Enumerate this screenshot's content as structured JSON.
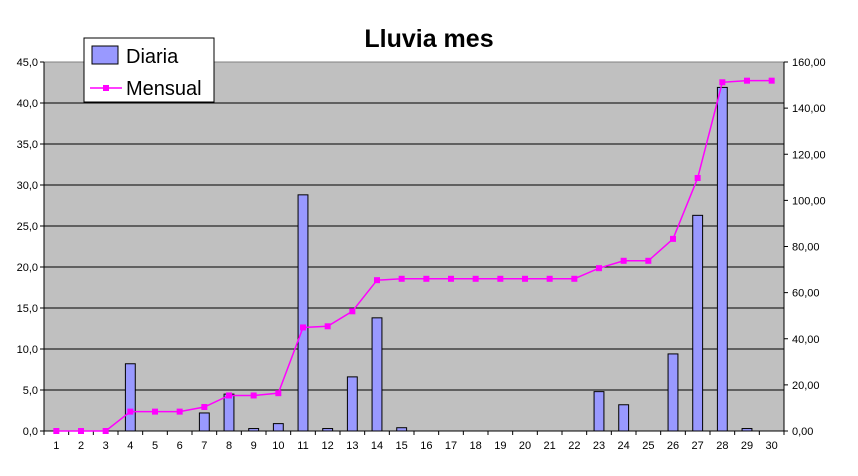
{
  "chart_data": {
    "type": "bar",
    "title": "Lluvia mes",
    "categories": [
      "1",
      "2",
      "3",
      "4",
      "5",
      "6",
      "7",
      "8",
      "9",
      "10",
      "11",
      "12",
      "13",
      "14",
      "15",
      "16",
      "17",
      "18",
      "19",
      "20",
      "21",
      "22",
      "23",
      "24",
      "25",
      "26",
      "27",
      "28",
      "29",
      "30"
    ],
    "series": [
      {
        "name": "Diaria",
        "type": "bar",
        "axis": "left",
        "values": [
          0.0,
          0.0,
          0.0,
          8.2,
          0.0,
          0.0,
          2.2,
          4.5,
          0.3,
          0.9,
          28.8,
          0.3,
          6.6,
          13.8,
          0.4,
          0.0,
          0.0,
          0.0,
          0.0,
          0.0,
          0.0,
          0.0,
          4.8,
          3.2,
          0.0,
          9.4,
          26.3,
          41.9,
          0.3,
          0.0
        ],
        "color": "#9999ff"
      },
      {
        "name": "Mensual",
        "type": "line",
        "axis": "right",
        "values": [
          0.0,
          0.0,
          0.0,
          8.4,
          8.4,
          8.4,
          10.4,
          15.4,
          15.4,
          16.4,
          44.9,
          45.4,
          51.9,
          65.4,
          66.0,
          66.0,
          66.0,
          66.0,
          66.0,
          66.0,
          66.0,
          66.0,
          70.6,
          73.8,
          73.8,
          83.3,
          109.7,
          151.2,
          151.9,
          151.9
        ],
        "color": "#ff00ff"
      }
    ],
    "left_axis": {
      "ylim": [
        0,
        45
      ],
      "ticks": [
        "0,0",
        "5,0",
        "10,0",
        "15,0",
        "20,0",
        "25,0",
        "30,0",
        "35,0",
        "40,0",
        "45,0"
      ]
    },
    "right_axis": {
      "ylim": [
        0,
        160
      ],
      "ticks": [
        "0,00",
        "20,00",
        "40,00",
        "60,00",
        "80,00",
        "100,00",
        "120,00",
        "140,00",
        "160,00"
      ]
    },
    "plot_background": "#c0c0c0",
    "grid": true,
    "legend_position": "top-left"
  }
}
